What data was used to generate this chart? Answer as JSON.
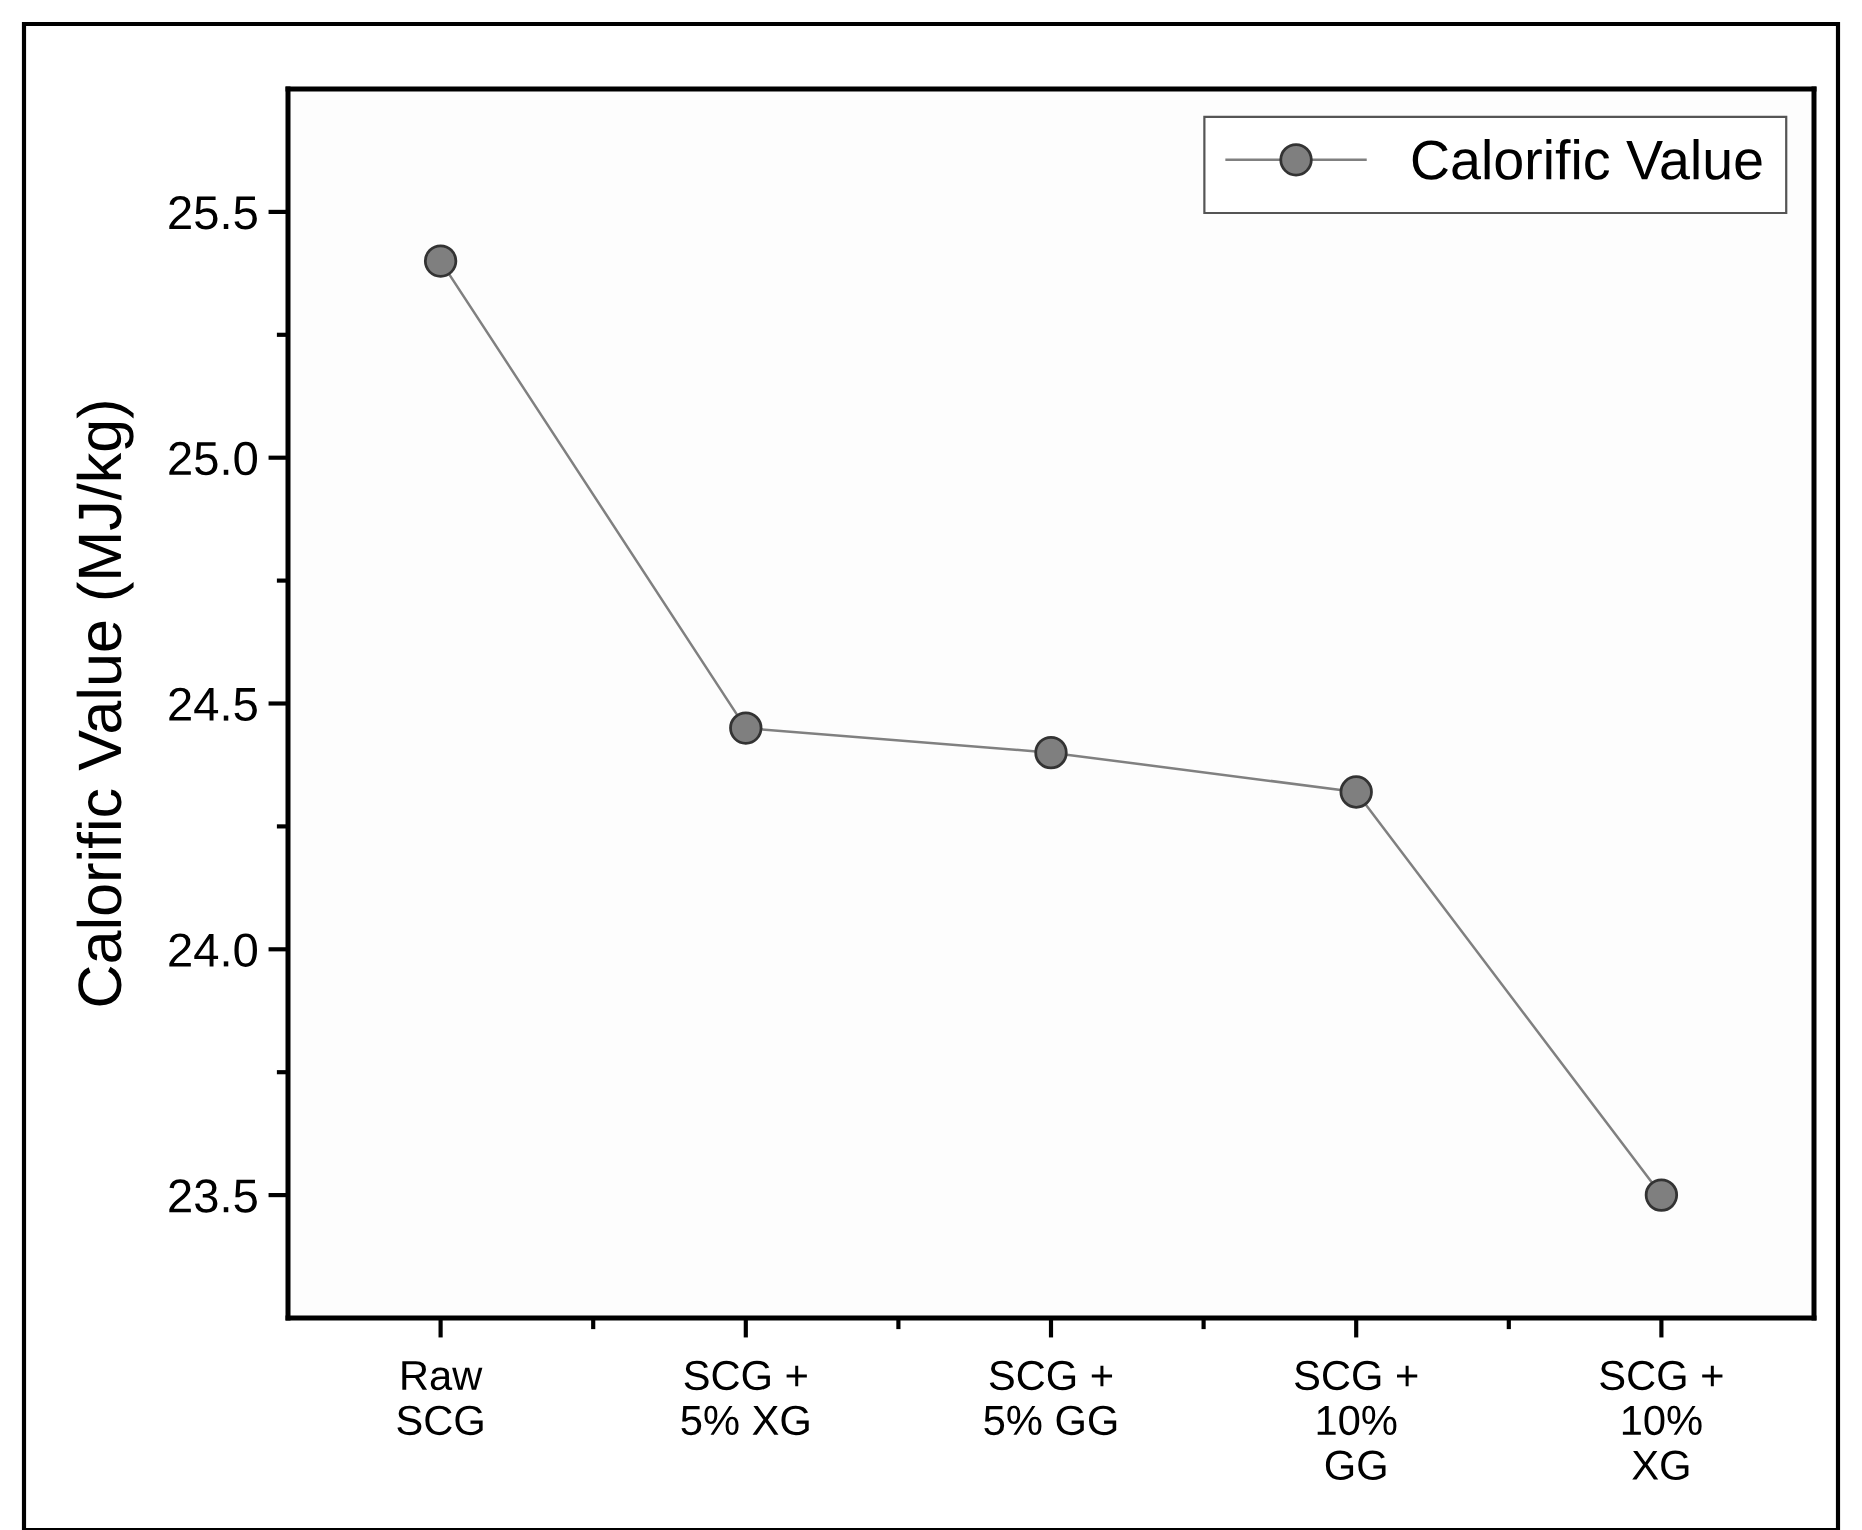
{
  "chart_data": {
    "type": "line",
    "ylabel": "Calorific Value (MJ/kg)",
    "categories": [
      "Raw\nSCG",
      "SCG +\n5% XG",
      "SCG +\n5% GG",
      "SCG +\n10%\nGG",
      "SCG +\n10%\nXG"
    ],
    "series": [
      {
        "name": "Calorific Value",
        "color": "#7f7f7f",
        "values": [
          25.4,
          24.45,
          24.4,
          24.32,
          23.5
        ]
      }
    ],
    "ylim": [
      23.25,
      25.75
    ],
    "yticks": [
      23.5,
      {
        "value": 23.75,
        "label": null
      },
      {
        "value": 24,
        "label": "24.0"
      },
      {
        "value": 24.25,
        "label": null
      },
      24.5,
      {
        "value": 24.75,
        "label": null
      },
      {
        "value": 25,
        "label": "25.0"
      },
      {
        "value": 25.25,
        "label": null
      },
      25.5
    ],
    "marker": "circle",
    "line_style": "solid",
    "legend": "top right",
    "grid": false
  }
}
